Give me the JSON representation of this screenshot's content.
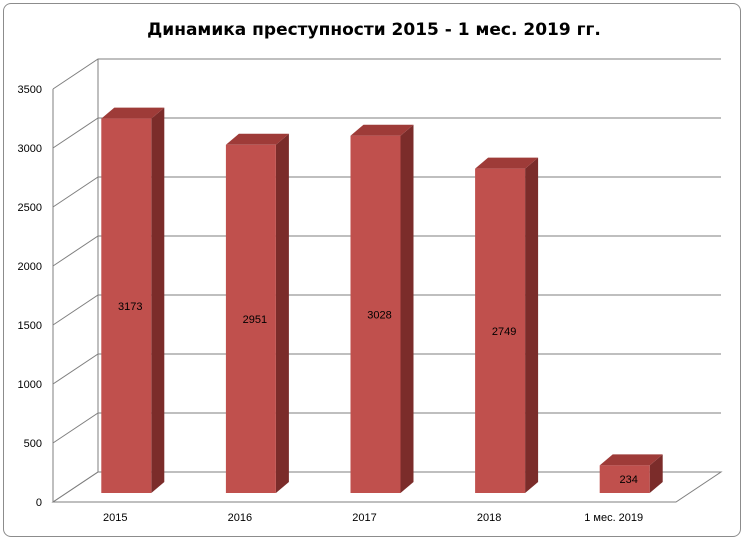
{
  "chart_data": {
    "type": "bar",
    "title": "Динамика  преступности 2015 - 1 мес. 2019 гг.",
    "categories": [
      "2015",
      "2016",
      "2017",
      "2018",
      "1 мес. 2019"
    ],
    "values": [
      3173,
      2951,
      3028,
      2749,
      234
    ],
    "y_ticks": [
      "0",
      "500",
      "1000",
      "1500",
      "2000",
      "2500",
      "3000",
      "3500"
    ],
    "ylim": [
      0,
      3500
    ],
    "grid": true,
    "legend": "none",
    "colors": {
      "bar_front": "#c0504d",
      "bar_side": "#7b2c2a",
      "bar_top": "#9e3b38",
      "grid": "#7f7f7f"
    }
  }
}
